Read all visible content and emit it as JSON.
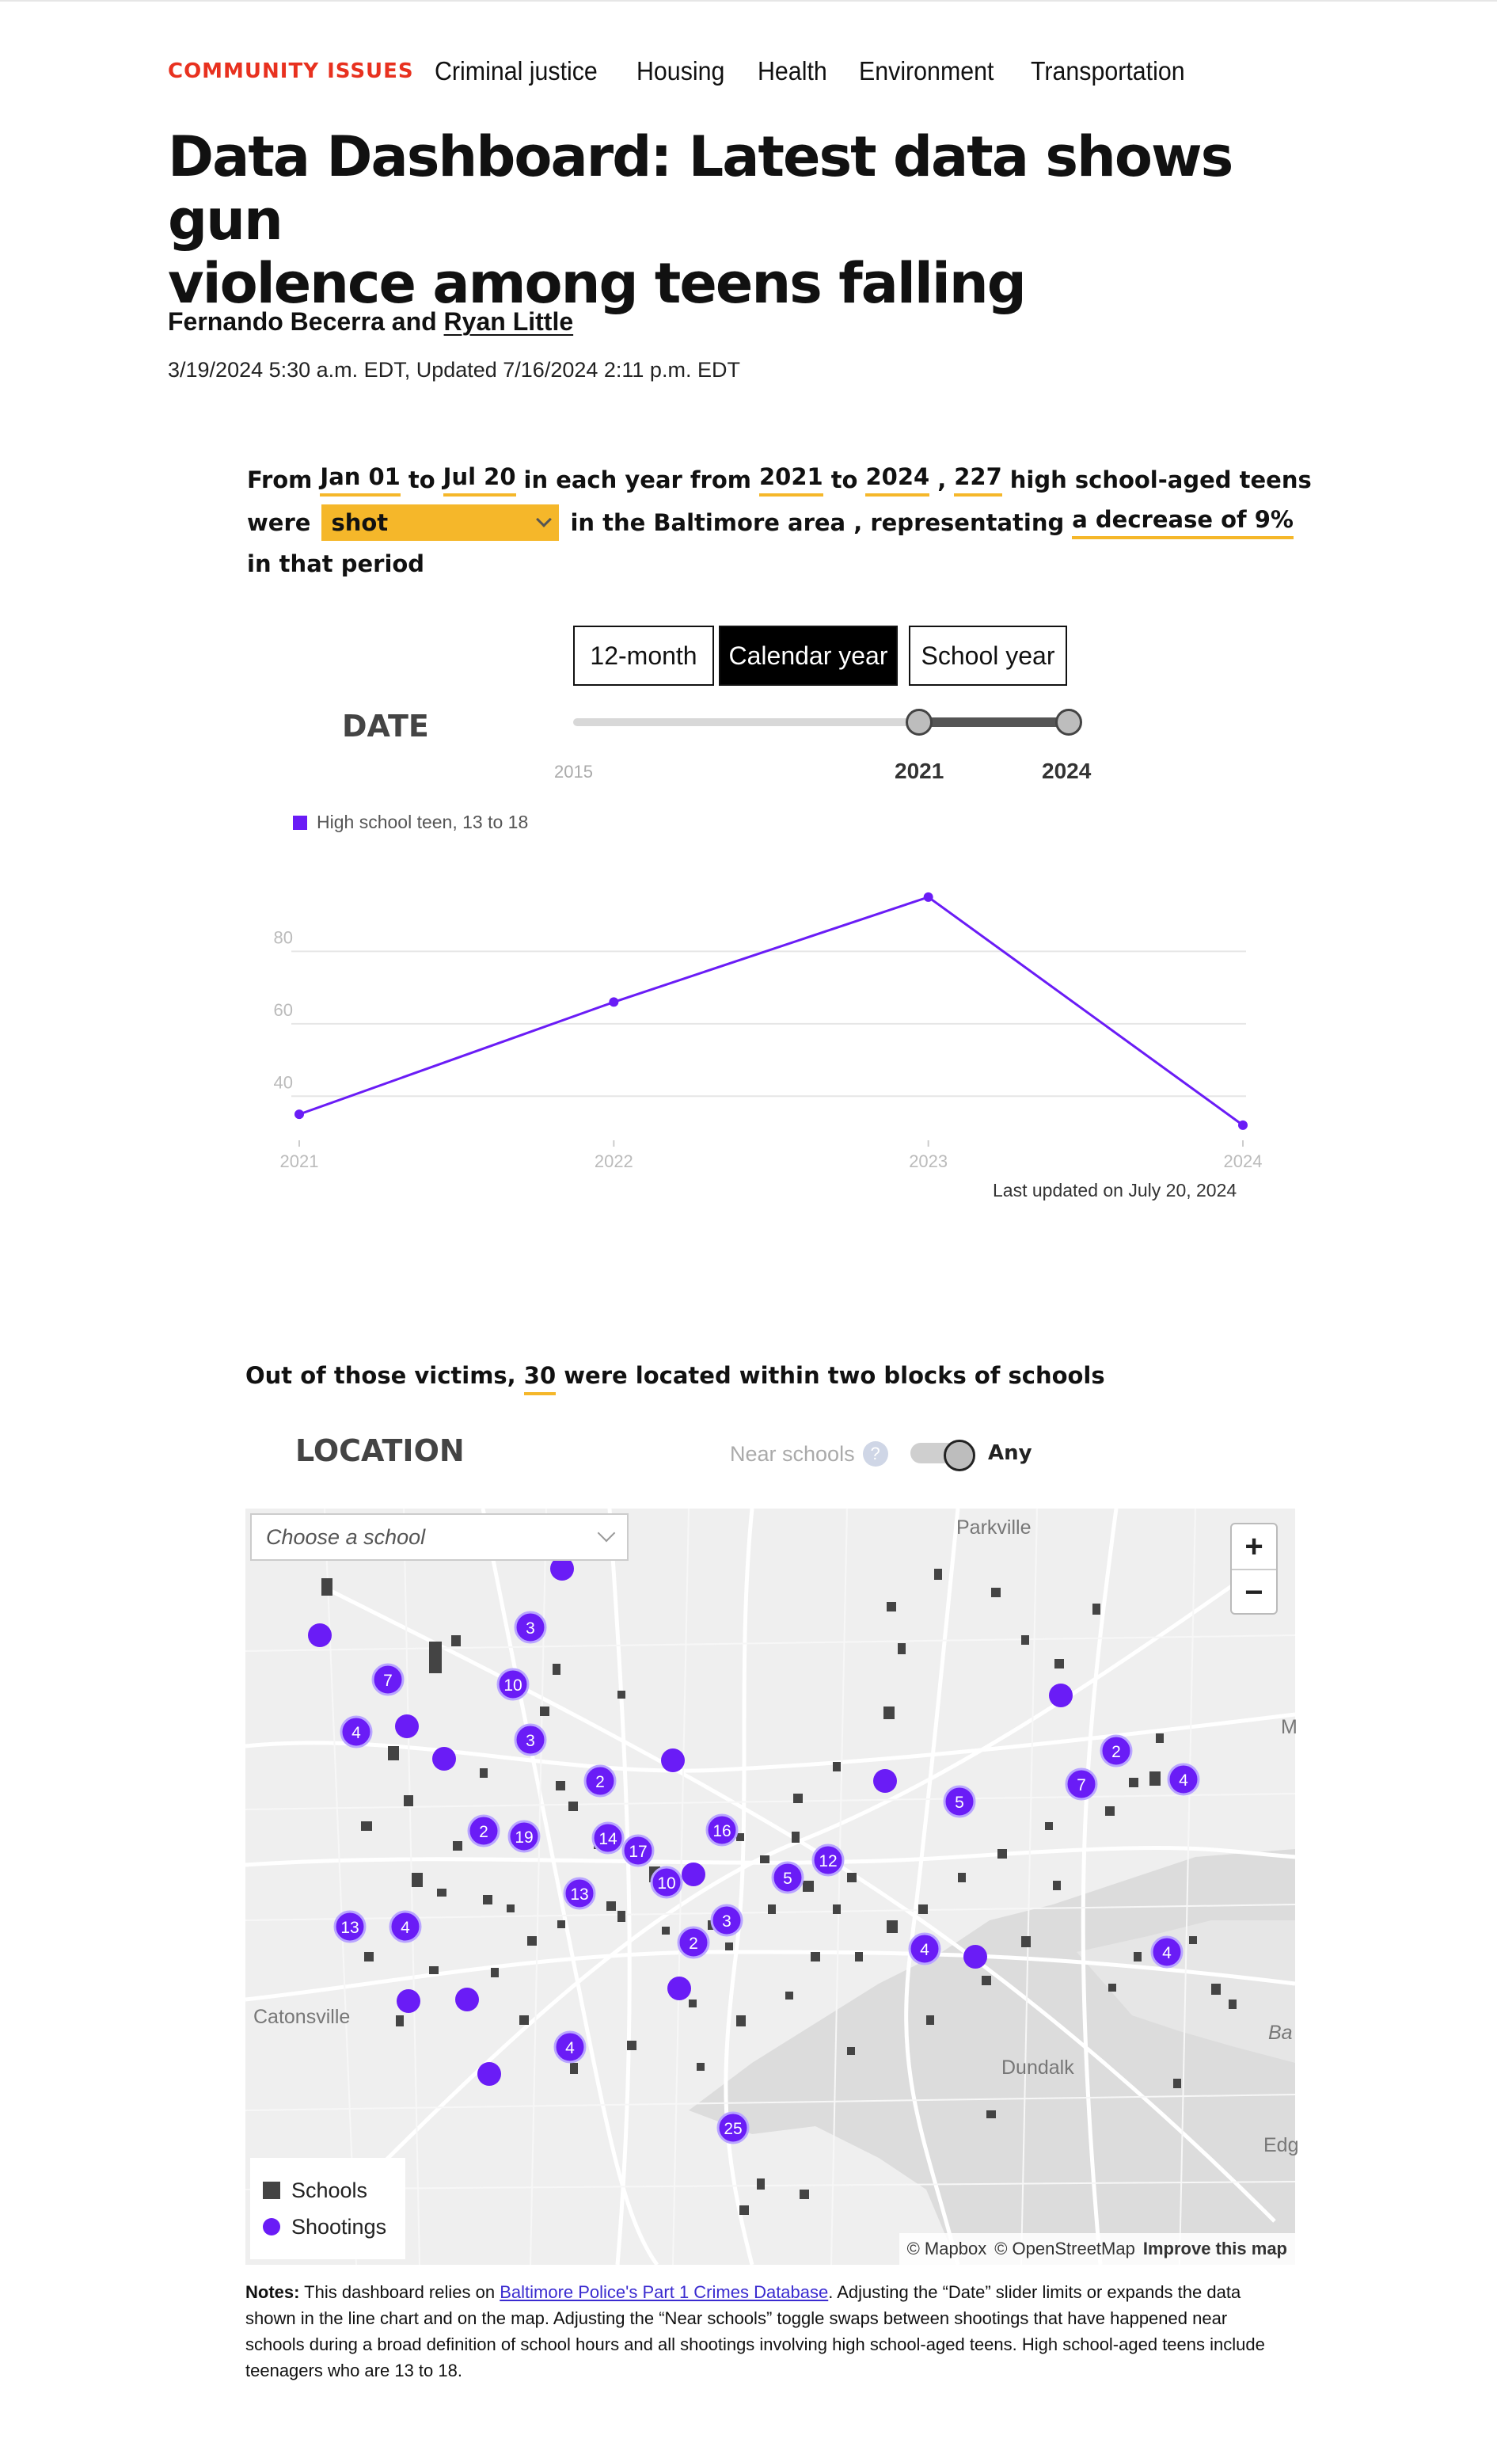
{
  "nav": {
    "brand": "COMMUNITY ISSUES",
    "links": [
      "Criminal justice",
      "Housing",
      "Health",
      "Environment",
      "Transportation"
    ]
  },
  "article": {
    "headline_line1": "Data Dashboard: Latest data shows gun",
    "headline_line2": "violence among teens falling",
    "author1": "Fernando Becerra",
    "author_join": " and ",
    "author2": "Ryan Little",
    "dates": "3/19/2024 5:30 a.m. EDT, Updated 7/16/2024 2:11 p.m. EDT"
  },
  "sentence": {
    "from": "From",
    "start_date": "Jan 01",
    "to": "to",
    "end_date": "Jul 20",
    "in_each_year": "in each year from",
    "year_start": "2021",
    "to2": "to",
    "year_end": "2024",
    "comma": ",",
    "count": "227",
    "after_count": "high school-aged teens",
    "were": "were",
    "victim_type": "shot",
    "in_area": "in the Baltimore area , representating",
    "change": "a decrease of 9%",
    "tail": "in that period"
  },
  "period_toggle": {
    "options": [
      "12-month",
      "Calendar year",
      "School year"
    ],
    "selected": "Calendar year"
  },
  "date_slider": {
    "label": "DATE",
    "min_label": "2015",
    "start_label": "2021",
    "end_label": "2024"
  },
  "chart_data": {
    "type": "line",
    "x": [
      "2021",
      "2022",
      "2023",
      "2024"
    ],
    "series": [
      {
        "name": "High school teen, 13 to 18",
        "values": [
          35,
          66,
          95,
          32
        ]
      }
    ],
    "ylim": [
      30,
      100
    ],
    "yticks": [
      "40",
      "60",
      "80"
    ],
    "grid": true,
    "legend": "top-left",
    "color": "#6a1cf6"
  },
  "last_updated": "Last updated on July 20, 2024",
  "location": {
    "victims_prefix": "Out of those victims,",
    "victims_count": "30",
    "victims_suffix": "were located within two blocks of schools",
    "label": "LOCATION",
    "near_schools": "Near schools",
    "help_glyph": "?",
    "toggle_value": "Any"
  },
  "map": {
    "school_placeholder": "Choose a school",
    "zoom_in": "+",
    "zoom_out": "−",
    "places": [
      "Parkville",
      "Catonsville",
      "Dundalk",
      "M",
      "Ba",
      "Edg"
    ],
    "legend_schools": "Schools",
    "legend_shootings": "Shootings",
    "attribution_mapbox": "© Mapbox",
    "attribution_osm": "© OpenStreetMap",
    "improve": "Improve this map",
    "shooting_color": "#6a1cf6",
    "school_color": "#444444",
    "cluster_labels": [
      "3",
      "10",
      "7",
      "4",
      "2",
      "3",
      "2",
      "7",
      "5",
      "4",
      "2",
      "14",
      "19",
      "16",
      "17",
      "12",
      "5",
      "10",
      "13",
      "4",
      "13",
      "2",
      "3",
      "4",
      "4",
      "4",
      "25"
    ]
  },
  "notes": {
    "label": "Notes:",
    "pre": "This dashboard relies on",
    "link": "Baltimore Police's Part 1 Crimes Database",
    "post": ". Adjusting the “Date” slider limits or expands the data shown in the line chart and on the map. Adjusting the “Near schools” toggle swaps between shootings that have happened near schools during a broad definition of school hours and all shootings involving high school-aged teens. High school-aged teens include teenagers who are 13 to 18."
  }
}
